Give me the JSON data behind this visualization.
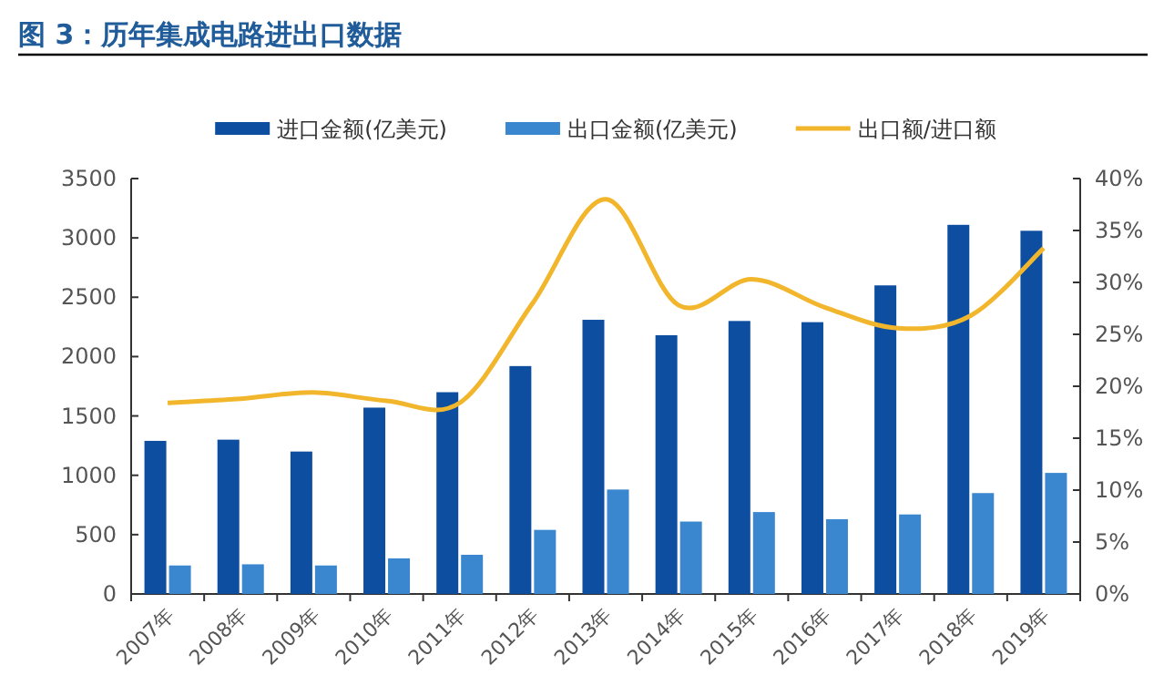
{
  "chart_data": {
    "type": "bar",
    "title": "图 3：历年集成电路进出口数据",
    "categories": [
      "2007年",
      "2008年",
      "2009年",
      "2010年",
      "2011年",
      "2012年",
      "2013年",
      "2014年",
      "2015年",
      "2016年",
      "2017年",
      "2018年",
      "2019年"
    ],
    "series": [
      {
        "name": "进口金额(亿美元)",
        "color": "#0d4ea1",
        "values": [
          1290,
          1300,
          1200,
          1570,
          1700,
          1920,
          2310,
          2180,
          2300,
          2290,
          2600,
          3110,
          3060
        ]
      },
      {
        "name": "出口金额(亿美元)",
        "color": "#3a87d0",
        "values": [
          240,
          250,
          240,
          300,
          330,
          540,
          880,
          610,
          690,
          630,
          670,
          850,
          1020
        ]
      },
      {
        "name": "出口额/进口额",
        "type": "line",
        "axis": "y2",
        "color": "#f2b62c",
        "values": [
          18.4,
          18.8,
          19.4,
          18.6,
          18.4,
          28,
          38,
          27.8,
          30.3,
          27.6,
          25.6,
          26.8,
          33.3
        ]
      }
    ],
    "ylim": [
      0,
      3500
    ],
    "yticks": [
      0,
      500,
      1000,
      1500,
      2000,
      2500,
      3000,
      3500
    ],
    "y2lim": [
      0,
      40
    ],
    "y2ticks": [
      {
        "value": 0,
        "label": "0%"
      },
      {
        "value": 5,
        "label": "5%"
      },
      {
        "value": 10,
        "label": "10%"
      },
      {
        "value": 15,
        "label": "15%"
      },
      {
        "value": 20,
        "label": "20%"
      },
      {
        "value": 25,
        "label": "25%"
      },
      {
        "value": 30,
        "label": "30%"
      },
      {
        "value": 35,
        "label": "35%"
      },
      {
        "value": 40,
        "label": "40%"
      }
    ],
    "grid": false,
    "legend": "top",
    "marker": "none"
  }
}
